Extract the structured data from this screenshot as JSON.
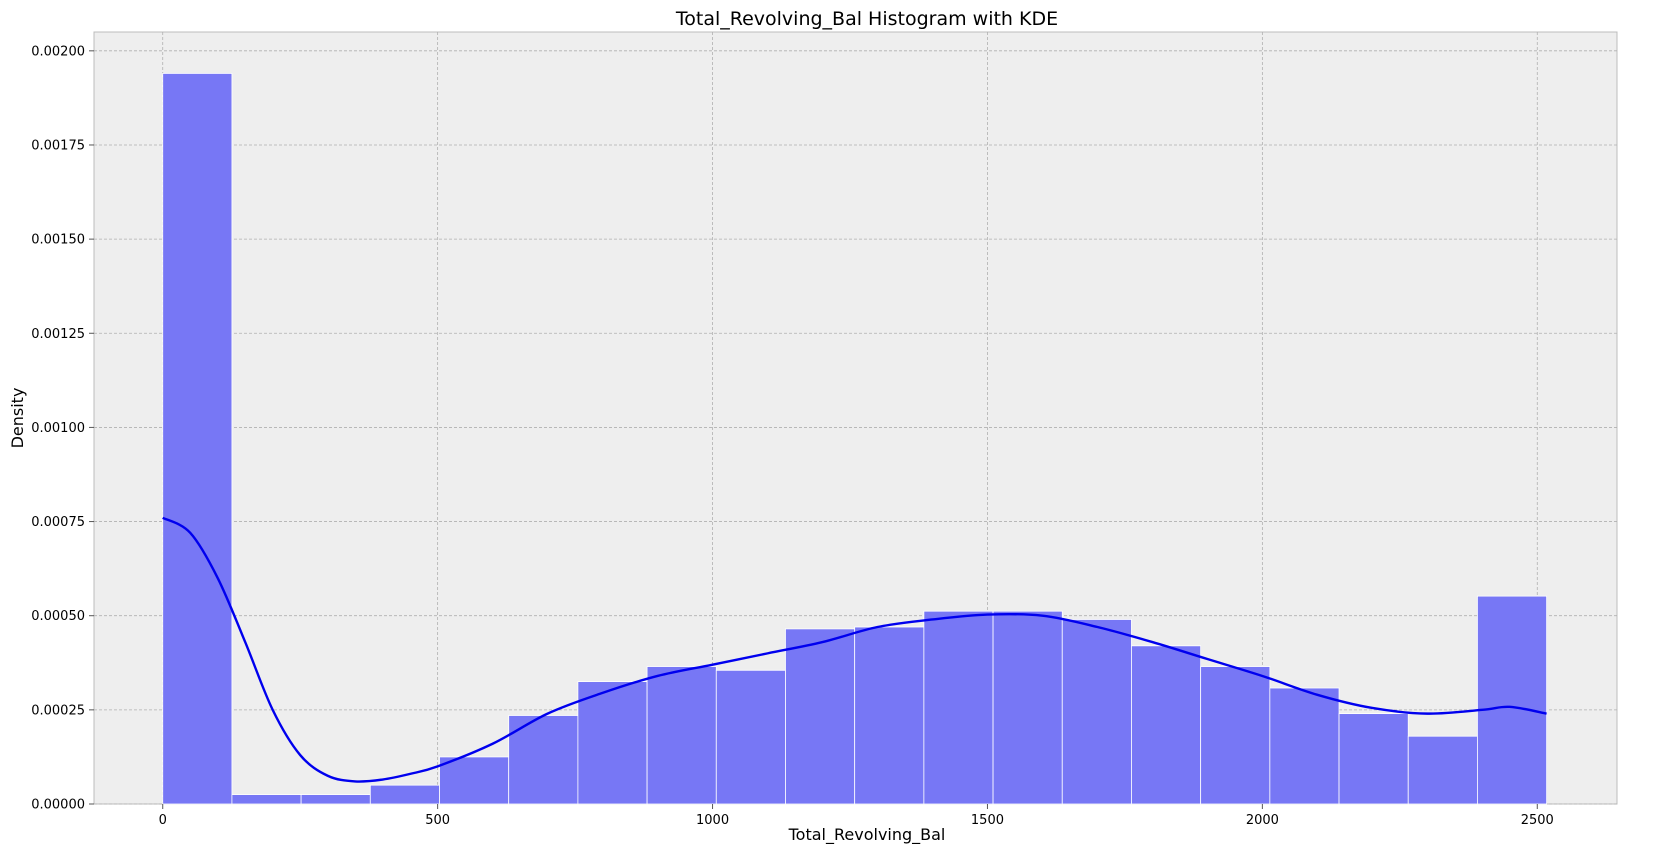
{
  "chart_data": {
    "type": "bar",
    "title": "Total_Revolving_Bal Histogram with KDE",
    "xlabel": "Total_Revolving_Bal",
    "ylabel": "Density",
    "xlim": [
      -125,
      2645
    ],
    "ylim": [
      0,
      0.00205
    ],
    "x_ticks": [
      0,
      500,
      1000,
      1500,
      2000,
      2500
    ],
    "x_tick_labels": [
      "0",
      "500",
      "1000",
      "1500",
      "2000",
      "2500"
    ],
    "y_ticks": [
      0,
      0.00025,
      0.0005,
      0.00075,
      0.001,
      0.00125,
      0.0015,
      0.00175,
      0.002
    ],
    "y_tick_labels": [
      "0.00000",
      "0.00025",
      "0.00050",
      "0.00075",
      "0.00100",
      "0.00125",
      "0.00150",
      "0.00175",
      "0.00200"
    ],
    "grid": true,
    "bin_edges": [
      0,
      125.85,
      251.7,
      377.55,
      503.4,
      629.25,
      755.1,
      880.95,
      1006.8,
      1132.65,
      1258.5,
      1384.35,
      1510.2,
      1636.05,
      1761.9,
      1887.75,
      2013.6,
      2139.45,
      2265.3,
      2391.15,
      2517
    ],
    "series": [
      {
        "kind": "histogram",
        "values": [
          0.00194,
          2.5e-05,
          2.5e-05,
          5e-05,
          0.000125,
          0.000235,
          0.000325,
          0.000365,
          0.000355,
          0.000465,
          0.00047,
          0.000512,
          0.000512,
          0.00049,
          0.00042,
          0.000365,
          0.000308,
          0.00024,
          0.00018,
          0.000552
        ],
        "color": "#7777f5"
      },
      {
        "kind": "kde",
        "x": [
          0,
          50,
          100,
          150,
          200,
          250,
          300,
          350,
          400,
          450,
          500,
          600,
          700,
          800,
          900,
          1000,
          1100,
          1200,
          1300,
          1400,
          1500,
          1600,
          1700,
          1800,
          1900,
          2000,
          2100,
          2200,
          2300,
          2400,
          2450,
          2517
        ],
        "y": [
          0.00076,
          0.00072,
          0.0006,
          0.00043,
          0.00025,
          0.00013,
          7.5e-05,
          6e-05,
          6.5e-05,
          8e-05,
          0.0001,
          0.00016,
          0.00024,
          0.000295,
          0.00034,
          0.00037,
          0.0004,
          0.00043,
          0.00047,
          0.00049,
          0.000503,
          0.0005,
          0.00047,
          0.00043,
          0.000385,
          0.00034,
          0.00029,
          0.000255,
          0.00024,
          0.00025,
          0.000258,
          0.00024
        ],
        "color": "#0000ee"
      }
    ]
  }
}
